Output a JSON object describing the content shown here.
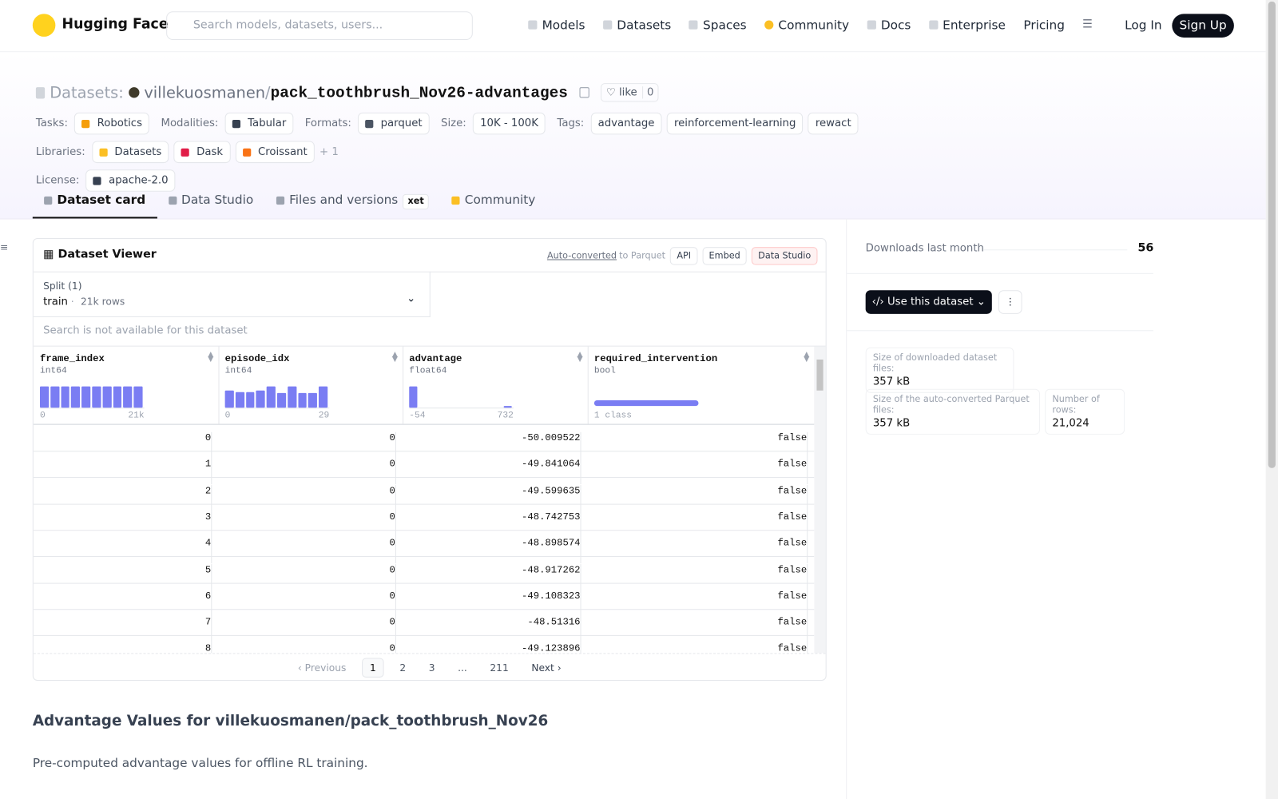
{
  "nav": {
    "brand": "Hugging Face",
    "search_placeholder": "Search models, datasets, users...",
    "links": [
      "Models",
      "Datasets",
      "Spaces",
      "Community",
      "Docs",
      "Enterprise",
      "Pricing"
    ],
    "login": "Log In",
    "signup": "Sign Up"
  },
  "header": {
    "section": "Datasets:",
    "owner": "villekuosmanen",
    "separator": "/",
    "name": "pack_toothbrush_Nov26-advantages",
    "like": "like",
    "likes": 0,
    "meta": [
      {
        "label": "Tasks:",
        "tags": [
          "Robotics"
        ]
      },
      {
        "label": "Modalities:",
        "tags": [
          "Tabular"
        ]
      },
      {
        "label": "Formats:",
        "tags": [
          "parquet"
        ]
      },
      {
        "label": "Size:",
        "tags": [
          "10K - 100K"
        ]
      },
      {
        "label": "Tags:",
        "tags": [
          "advantage",
          "reinforcement-learning",
          "rewact"
        ]
      },
      {
        "label": "Libraries:",
        "tags": [
          "Datasets",
          "Dask",
          "Croissant"
        ],
        "more": "+ 1"
      },
      {
        "label": "License:",
        "tags": [
          "apache-2.0"
        ]
      }
    ],
    "tabs": [
      "Dataset card",
      "Data Studio",
      "Files and versions",
      "Community"
    ],
    "xet": "xet"
  },
  "viewer": {
    "title": "Dataset Viewer",
    "converted": "Auto-converted",
    "to_parquet": "to Parquet",
    "buttons": [
      "API",
      "Embed",
      "Data Studio"
    ],
    "split_label": "Split (1)",
    "split": "train",
    "split_rows": "21k rows",
    "search_note": "Search is not available for this dataset",
    "columns": [
      {
        "name": "frame_index",
        "dtype": "int64",
        "range": [
          "0",
          "21k"
        ],
        "hist": [
          1,
          1,
          1,
          1,
          1,
          1,
          1,
          1,
          1,
          1
        ]
      },
      {
        "name": "episode_idx",
        "dtype": "int64",
        "range": [
          "0",
          "29"
        ],
        "hist": [
          0.8,
          0.72,
          0.72,
          0.8,
          1,
          0.68,
          1,
          0.68,
          0.68,
          1
        ]
      },
      {
        "name": "advantage",
        "dtype": "float64",
        "range": [
          "-54",
          "732"
        ],
        "hist": [
          1,
          0,
          0,
          0,
          0,
          0,
          0,
          0,
          0,
          0,
          0.08
        ]
      },
      {
        "name": "required_intervention",
        "dtype": "bool",
        "range": [
          "1 class"
        ],
        "hist": [
          1
        ]
      }
    ],
    "rows": [
      [
        0,
        0,
        -50.009522,
        "false"
      ],
      [
        1,
        0,
        -49.841064,
        "false"
      ],
      [
        2,
        0,
        -49.599635,
        "false"
      ],
      [
        3,
        0,
        -48.742753,
        "false"
      ],
      [
        4,
        0,
        -48.898574,
        "false"
      ],
      [
        5,
        0,
        -48.917262,
        "false"
      ],
      [
        6,
        0,
        -49.108323,
        "false"
      ],
      [
        7,
        0,
        -48.51316,
        "false"
      ],
      [
        8,
        0,
        -49.123896,
        "false"
      ]
    ],
    "pagination": {
      "previous": "Previous",
      "pages": [
        "1",
        "2",
        "3",
        "...",
        "211"
      ],
      "next": "Next"
    }
  },
  "card": {
    "heading": "Advantage Values for villekuosmanen/pack_toothbrush_Nov26",
    "text": "Pre-computed advantage values for offline RL training."
  },
  "sidebar": {
    "downloads_label": "Downloads last month",
    "downloads": 56,
    "use": "Use this dataset",
    "stats": [
      {
        "label": "Size of downloaded dataset files:",
        "value": "357 kB"
      },
      {
        "label": "Size of the auto-converted Parquet files:",
        "value": "357 kB"
      },
      {
        "label": "Number of rows:",
        "value": "21,024"
      }
    ]
  }
}
